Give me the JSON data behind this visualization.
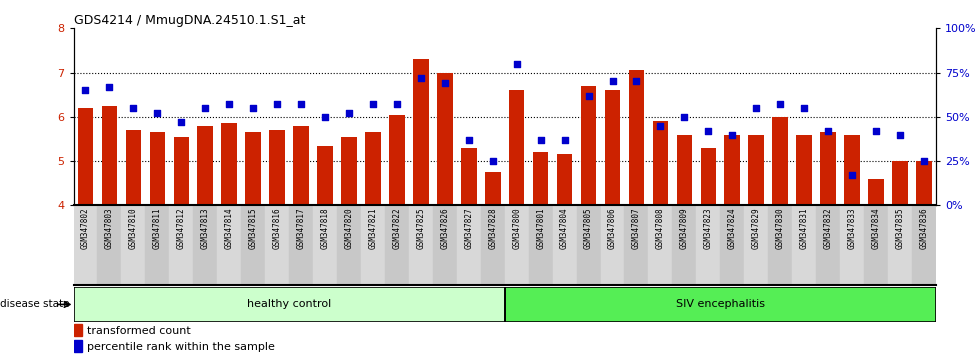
{
  "title": "GDS4214 / MmugDNA.24510.1.S1_at",
  "samples": [
    "GSM347802",
    "GSM347803",
    "GSM347810",
    "GSM347811",
    "GSM347812",
    "GSM347813",
    "GSM347814",
    "GSM347815",
    "GSM347816",
    "GSM347817",
    "GSM347818",
    "GSM347820",
    "GSM347821",
    "GSM347822",
    "GSM347825",
    "GSM347826",
    "GSM347827",
    "GSM347828",
    "GSM347800",
    "GSM347801",
    "GSM347804",
    "GSM347805",
    "GSM347806",
    "GSM347807",
    "GSM347808",
    "GSM347809",
    "GSM347823",
    "GSM347824",
    "GSM347829",
    "GSM347830",
    "GSM347831",
    "GSM347832",
    "GSM347833",
    "GSM347834",
    "GSM347835",
    "GSM347836"
  ],
  "bar_values": [
    6.2,
    6.25,
    5.7,
    5.65,
    5.55,
    5.8,
    5.85,
    5.65,
    5.7,
    5.8,
    5.35,
    5.55,
    5.65,
    6.05,
    7.3,
    7.0,
    5.3,
    4.75,
    6.6,
    5.2,
    5.15,
    6.7,
    6.6,
    7.05,
    5.9,
    5.6,
    5.3,
    5.6,
    5.6,
    6.0,
    5.6,
    5.65,
    5.6,
    4.6,
    5.0,
    5.0
  ],
  "percentile_values": [
    65,
    67,
    55,
    52,
    47,
    55,
    57,
    55,
    57,
    57,
    50,
    52,
    57,
    57,
    72,
    69,
    37,
    25,
    80,
    37,
    37,
    62,
    70,
    70,
    45,
    50,
    42,
    40,
    55,
    57,
    55,
    42,
    17,
    42,
    40,
    25
  ],
  "healthy_count": 18,
  "bar_color": "#cc2200",
  "dot_color": "#0000cc",
  "ylim_left": [
    4,
    8
  ],
  "ylim_right": [
    0,
    100
  ],
  "yticks_left": [
    4,
    5,
    6,
    7,
    8
  ],
  "ytick_labels_right": [
    "0%",
    "25%",
    "50%",
    "75%",
    "100%"
  ],
  "healthy_label": "healthy control",
  "siv_label": "SIV encephalitis",
  "disease_state_label": "disease state",
  "legend_bar_label": "transformed count",
  "legend_dot_label": "percentile rank within the sample",
  "healthy_bg": "#ccffcc",
  "siv_bg": "#55ee55",
  "xtick_bg_even": "#d8d8d8",
  "xtick_bg_odd": "#c8c8c8"
}
